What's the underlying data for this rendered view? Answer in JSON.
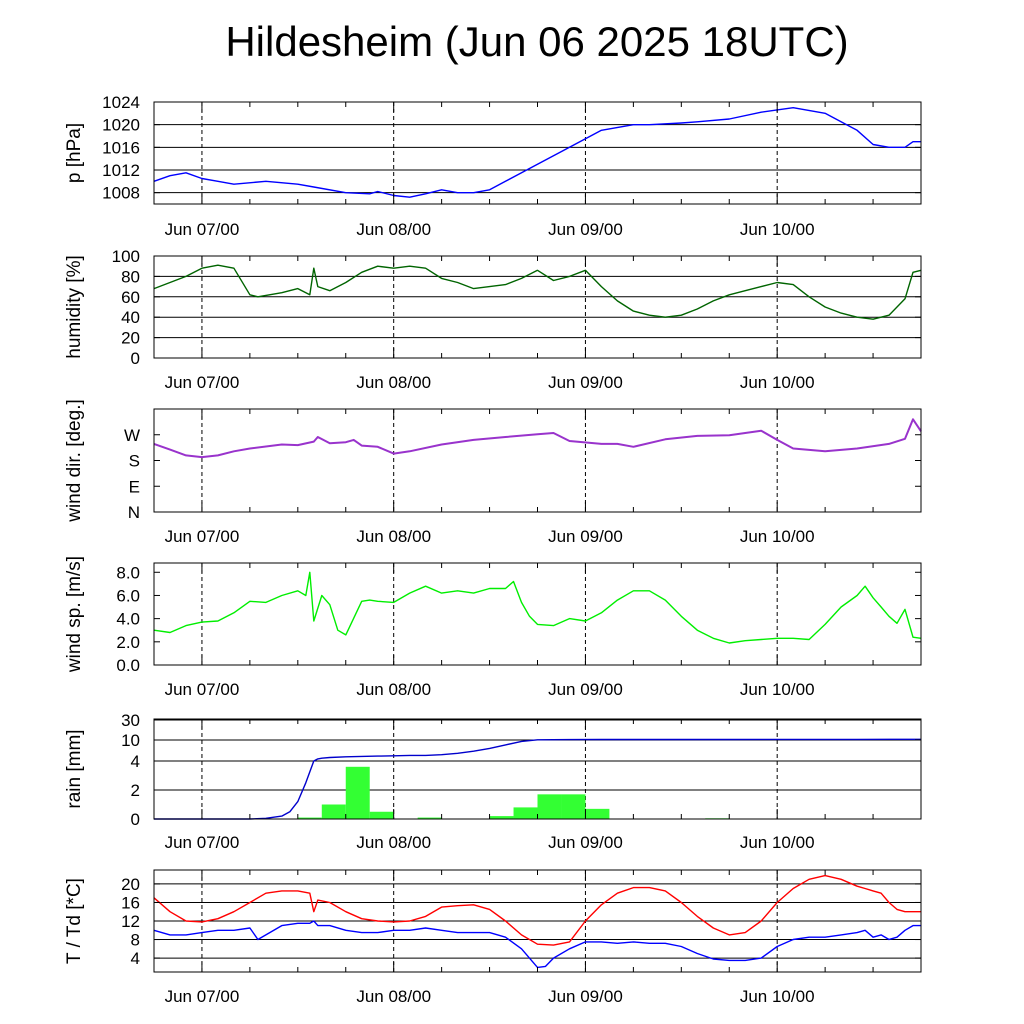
{
  "title": "Hildesheim (Jun 06 2025 18UTC)",
  "x_ticks": [
    "Jun 07/00",
    "Jun 08/00",
    "Jun 09/00",
    "Jun 10/00"
  ],
  "colors": {
    "pressure": "#0000ff",
    "humidity": "#006400",
    "wind_dir": "#9933cc",
    "wind_speed": "#00ee00",
    "rain_bars": "#33ff33",
    "rain_line": "#0000cc",
    "temperature": "#ff0000",
    "dewpoint": "#0000ff"
  },
  "chart_data": [
    {
      "type": "line",
      "ylabel": "p [hPa]",
      "x_unit": "hours from Jun 06 18UTC",
      "xlim": [
        0,
        96
      ],
      "ylim": [
        1006,
        1024
      ],
      "yticks": [
        1008,
        1012,
        1016,
        1020,
        1024
      ],
      "ytick_labels": [
        "1008",
        "1012",
        "1016",
        "1020",
        "1024"
      ],
      "grid": true,
      "series": [
        {
          "key": "pressure",
          "x": [
            0,
            2,
            4,
            6,
            8,
            10,
            14,
            18,
            20,
            24,
            27,
            28,
            30,
            32,
            34,
            36,
            38,
            40,
            42,
            44,
            48,
            52,
            56,
            60,
            62,
            66,
            68,
            72,
            76,
            80,
            84,
            88,
            90,
            92,
            94,
            95,
            96
          ],
          "y": [
            1010,
            1011,
            1011.5,
            1010.5,
            1010,
            1009.5,
            1010,
            1009.5,
            1009,
            1008,
            1007.8,
            1008.2,
            1007.5,
            1007.2,
            1007.8,
            1008.5,
            1008,
            1008,
            1008.5,
            1010,
            1013,
            1016,
            1019,
            1020,
            1020,
            1020.3,
            1020.5,
            1021,
            1022.2,
            1023,
            1022,
            1019,
            1016.5,
            1016,
            1016,
            1017,
            1017
          ]
        }
      ]
    },
    {
      "type": "line",
      "ylabel": "humidity [%]",
      "x_unit": "hours from Jun 06 18UTC",
      "xlim": [
        0,
        96
      ],
      "ylim": [
        0,
        100
      ],
      "yticks": [
        0,
        20,
        40,
        60,
        80,
        100
      ],
      "ytick_labels": [
        "0",
        "20",
        "40",
        "60",
        "80",
        "100"
      ],
      "grid": true,
      "series": [
        {
          "key": "humidity",
          "x": [
            0,
            2,
            4,
            6,
            8,
            10,
            12,
            13,
            16,
            18,
            19.5,
            20,
            20.5,
            22,
            24,
            26,
            28,
            30,
            32,
            34,
            36,
            38,
            40,
            42,
            44,
            46,
            48,
            50,
            52,
            54,
            56,
            58,
            60,
            62,
            64,
            66,
            68,
            70,
            72,
            74,
            76,
            78,
            80,
            82,
            84,
            86,
            88,
            90,
            92,
            94,
            95,
            96
          ],
          "y": [
            68,
            74,
            80,
            88,
            91,
            88,
            62,
            60,
            64,
            68,
            62,
            88,
            70,
            66,
            74,
            84,
            90,
            88,
            90,
            88,
            78,
            74,
            68,
            70,
            72,
            78,
            86,
            76,
            80,
            86,
            70,
            56,
            46,
            42,
            40,
            42,
            48,
            56,
            62,
            66,
            70,
            74,
            72,
            60,
            50,
            44,
            40,
            38,
            42,
            58,
            84,
            86
          ]
        }
      ]
    },
    {
      "type": "line",
      "ylabel": "wind dir. [deg.]",
      "x_unit": "hours from Jun 06 18UTC",
      "xlim": [
        0,
        96
      ],
      "ylim": [
        0,
        360
      ],
      "yticks": [
        0,
        90,
        180,
        270
      ],
      "ytick_labels": [
        "N",
        "E",
        "S",
        "W"
      ],
      "grid": false,
      "series": [
        {
          "key": "wind_dir",
          "x": [
            0,
            2,
            4,
            6,
            8,
            10,
            12,
            16,
            18,
            20,
            20.5,
            22,
            24,
            25,
            26,
            28,
            30,
            32,
            36,
            40,
            44,
            48,
            50,
            52,
            56,
            58,
            60,
            64,
            68,
            72,
            74,
            76,
            78,
            80,
            84,
            88,
            92,
            94,
            95,
            96
          ],
          "y": [
            238,
            218,
            198,
            192,
            198,
            212,
            222,
            236,
            234,
            246,
            262,
            240,
            244,
            252,
            232,
            228,
            204,
            212,
            236,
            252,
            262,
            272,
            276,
            248,
            238,
            238,
            228,
            254,
            266,
            268,
            276,
            284,
            252,
            222,
            212,
            222,
            238,
            256,
            324,
            282
          ]
        }
      ]
    },
    {
      "type": "line",
      "ylabel": "wind sp. [m/s]",
      "x_unit": "hours from Jun 06 18UTC",
      "xlim": [
        0,
        96
      ],
      "ylim": [
        0,
        8.8
      ],
      "yticks": [
        0,
        2,
        4,
        6,
        8
      ],
      "ytick_labels": [
        "0.0",
        "2.0",
        "4.0",
        "6.0",
        "8.0"
      ],
      "grid": false,
      "series": [
        {
          "key": "wind_speed",
          "x": [
            0,
            2,
            4,
            6,
            8,
            10,
            12,
            14,
            16,
            18,
            19,
            19.5,
            20,
            21,
            22,
            23,
            24,
            26,
            27,
            28,
            30,
            32,
            34,
            36,
            38,
            40,
            42,
            44,
            45,
            46,
            47,
            48,
            50,
            52,
            54,
            56,
            58,
            60,
            62,
            64,
            66,
            68,
            70,
            72,
            74,
            76,
            78,
            80,
            82,
            84,
            86,
            88,
            89,
            90,
            91,
            92,
            93,
            94,
            95,
            96
          ],
          "y": [
            3.0,
            2.8,
            3.4,
            3.7,
            3.8,
            4.5,
            5.5,
            5.4,
            6.0,
            6.4,
            6.0,
            8.0,
            3.8,
            6.0,
            5.2,
            3.0,
            2.6,
            5.5,
            5.6,
            5.5,
            5.4,
            6.2,
            6.8,
            6.2,
            6.4,
            6.2,
            6.6,
            6.6,
            7.2,
            5.4,
            4.2,
            3.5,
            3.4,
            4.0,
            3.8,
            4.5,
            5.6,
            6.4,
            6.4,
            5.6,
            4.2,
            3.0,
            2.3,
            1.9,
            2.1,
            2.2,
            2.3,
            2.3,
            2.2,
            3.5,
            5.0,
            6.0,
            6.8,
            5.8,
            5.0,
            4.2,
            3.6,
            4.8,
            2.4,
            2.3
          ]
        }
      ]
    },
    {
      "type": "bar",
      "ylabel": "rain [mm]",
      "x_unit": "hours from Jun 06 18UTC",
      "xlim": [
        0,
        96
      ],
      "ylim": [
        0,
        30
      ],
      "y_scale": "piecewise",
      "yticks": [
        0,
        2,
        4,
        10,
        30
      ],
      "ytick_labels": [
        "0",
        "2",
        "4",
        "10",
        "30"
      ],
      "grid": true,
      "bar_width_hours": 3,
      "bar_x": [
        15,
        18,
        21,
        24,
        27,
        30,
        33,
        36,
        39,
        42,
        45,
        48,
        51,
        54,
        57,
        60,
        63,
        66,
        69
      ],
      "bar_values": [
        0,
        0.1,
        1.0,
        3.6,
        0.5,
        0,
        0.1,
        0,
        0,
        0.2,
        0.8,
        1.7,
        1.7,
        0.7,
        0,
        0,
        0,
        0,
        0.05
      ],
      "series": [
        {
          "key": "rain_line",
          "x": [
            0,
            6,
            10,
            12,
            14,
            16,
            17,
            18,
            19,
            20,
            20.5,
            21,
            22,
            24,
            28,
            30,
            32,
            34,
            36,
            38,
            40,
            42,
            44,
            46,
            48,
            50,
            52,
            56,
            60,
            66,
            72,
            80,
            88,
            96
          ],
          "y": [
            0,
            0,
            0,
            0,
            0.05,
            0.2,
            0.5,
            1.2,
            2.5,
            4.0,
            4.6,
            4.8,
            5.0,
            5.2,
            5.4,
            5.5,
            5.6,
            5.6,
            5.8,
            6.2,
            6.8,
            7.6,
            8.6,
            9.6,
            10.2,
            10.3,
            10.4,
            10.5,
            10.5,
            10.5,
            10.5,
            10.6,
            10.6,
            10.7
          ]
        }
      ]
    },
    {
      "type": "line",
      "ylabel": "T / Td [*C]",
      "x_unit": "hours from Jun 06 18UTC",
      "xlim": [
        0,
        96
      ],
      "ylim": [
        1,
        23
      ],
      "yticks": [
        4,
        8,
        12,
        16,
        20
      ],
      "ytick_labels": [
        "4",
        "8",
        "12",
        "16",
        "20"
      ],
      "grid": true,
      "series": [
        {
          "key": "temperature",
          "x": [
            0,
            2,
            4,
            6,
            8,
            10,
            12,
            14,
            16,
            18,
            19.5,
            20,
            20.5,
            22,
            24,
            26,
            28,
            30,
            32,
            34,
            36,
            38,
            40,
            42,
            44,
            46,
            48,
            50,
            52,
            54,
            56,
            58,
            60,
            62,
            64,
            66,
            68,
            70,
            72,
            74,
            76,
            78,
            80,
            82,
            84,
            86,
            88,
            89,
            90,
            91,
            92,
            93,
            94,
            95,
            96
          ],
          "y": [
            17,
            14,
            12,
            11.8,
            12.5,
            14,
            16,
            18,
            18.5,
            18.5,
            18,
            14,
            16.5,
            16,
            14,
            12.5,
            12,
            11.8,
            12,
            13,
            15,
            15.3,
            15.5,
            14.5,
            12,
            9,
            7,
            6.8,
            7.5,
            12,
            15.5,
            18,
            19.2,
            19.2,
            18.5,
            16,
            13,
            10.5,
            9,
            9.5,
            12,
            16,
            19,
            21,
            21.8,
            21,
            19.5,
            19,
            18.5,
            18,
            16,
            14.5,
            14,
            14,
            14
          ]
        },
        {
          "key": "dewpoint",
          "x": [
            0,
            2,
            4,
            6,
            8,
            10,
            12,
            13,
            16,
            18,
            19.5,
            20,
            20.5,
            22,
            24,
            26,
            28,
            30,
            32,
            34,
            36,
            38,
            40,
            42,
            44,
            46,
            48,
            49,
            50,
            52,
            54,
            56,
            58,
            60,
            62,
            64,
            66,
            68,
            70,
            72,
            74,
            76,
            78,
            80,
            82,
            84,
            86,
            88,
            89,
            90,
            91,
            92,
            93,
            94,
            95,
            96
          ],
          "y": [
            10,
            9,
            9,
            9.5,
            10,
            10,
            10.5,
            8,
            11,
            11.5,
            11.5,
            12,
            11,
            11,
            10,
            9.5,
            9.5,
            10,
            10,
            10.5,
            10,
            9.5,
            9.5,
            9.5,
            8.5,
            6,
            2,
            2.2,
            4,
            6,
            7.5,
            7.5,
            7.2,
            7.5,
            7.2,
            7.2,
            6.5,
            5,
            3.8,
            3.5,
            3.5,
            4,
            6.5,
            8,
            8.5,
            8.5,
            9,
            9.5,
            10,
            8.5,
            9,
            8,
            8.5,
            10,
            11,
            11
          ]
        }
      ]
    }
  ]
}
